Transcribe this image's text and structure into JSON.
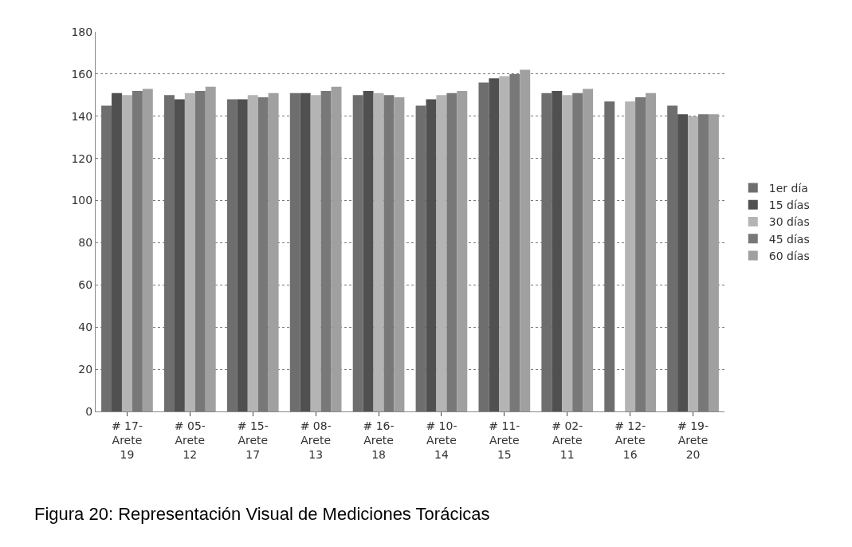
{
  "chart_data": {
    "type": "bar",
    "categories": [
      "# 17-\nArete\n19",
      "# 05-\nArete\n12",
      "# 15-\nArete\n17",
      "# 08-\nArete\n13",
      "# 16-\nArete\n18",
      "# 10-\nArete\n14",
      "# 11-\nArete\n15",
      "# 02-\nArete\n11",
      "# 12-\nArete\n16",
      "# 19-\nArete\n20"
    ],
    "series": [
      {
        "name": "1er día",
        "color": "#6e6e6e",
        "values": [
          145,
          150,
          148,
          151,
          150,
          145,
          156,
          151,
          147,
          145
        ]
      },
      {
        "name": "15 días",
        "color": "#505050",
        "values": [
          151,
          148,
          148,
          151,
          152,
          148,
          158,
          152,
          null,
          141
        ]
      },
      {
        "name": "30 días",
        "color": "#b4b4b4",
        "values": [
          150,
          151,
          150,
          150,
          151,
          150,
          159,
          150,
          147,
          140
        ]
      },
      {
        "name": "45 días",
        "color": "#787878",
        "values": [
          152,
          152,
          149,
          152,
          150,
          151,
          160,
          151,
          149,
          141
        ]
      },
      {
        "name": "60 días",
        "color": "#a0a0a0",
        "values": [
          153,
          154,
          151,
          154,
          149,
          152,
          162,
          153,
          151,
          141
        ]
      }
    ],
    "ylim": [
      0,
      180
    ],
    "yticks": [
      0,
      20,
      40,
      60,
      80,
      100,
      120,
      140,
      160,
      180
    ],
    "grid": "y",
    "legend": "right",
    "annotations": [
      "Figura 20: Representación Visual de Mediciones Torácicas"
    ]
  }
}
